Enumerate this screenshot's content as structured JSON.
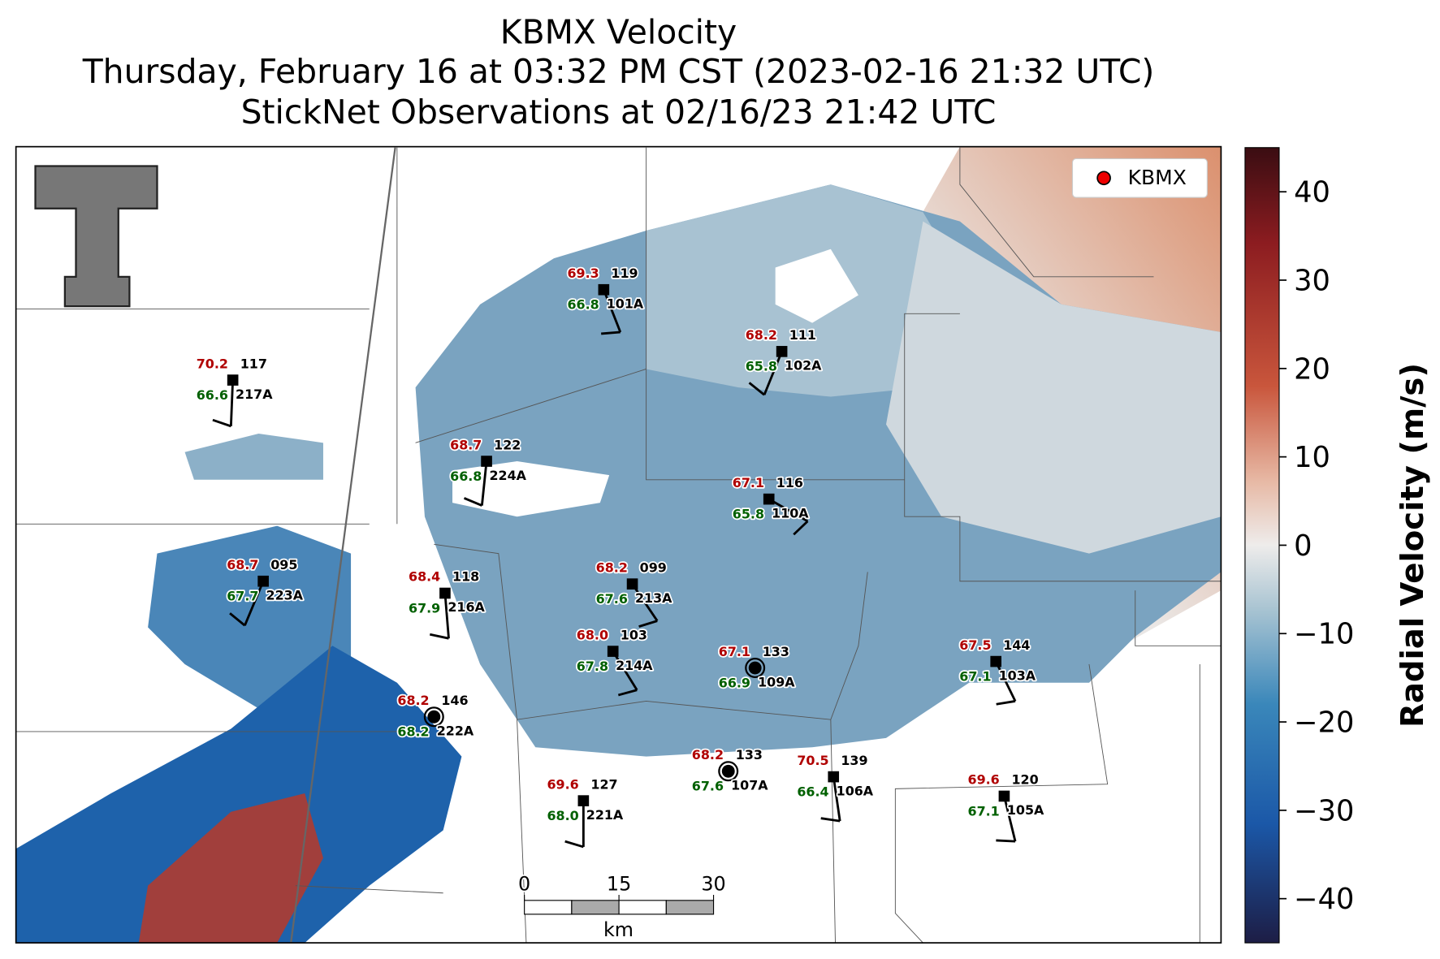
{
  "header": {
    "title": "KBMX Velocity",
    "subtitle": "Thursday, February 16 at 03:32 PM CST (2023-02-16 21:32 UTC)",
    "observations": "StickNet Observations at 02/16/23 21:42 UTC"
  },
  "legend": {
    "label": "KBMX"
  },
  "colorbar": {
    "label": "Radial Velocity (m/s)",
    "lim": [
      -45,
      45
    ],
    "ticks": [
      {
        "value": 40,
        "label": "40"
      },
      {
        "value": 30,
        "label": "30"
      },
      {
        "value": 20,
        "label": "20"
      },
      {
        "value": 10,
        "label": "10"
      },
      {
        "value": 0,
        "label": "0"
      },
      {
        "value": -10,
        "label": "−10"
      },
      {
        "value": -20,
        "label": "−20"
      },
      {
        "value": -30,
        "label": "−30"
      },
      {
        "value": -40,
        "label": "−40"
      }
    ]
  },
  "scale_bar": {
    "unit": "km",
    "lim": [
      0,
      30
    ],
    "ticks": [
      0,
      15,
      30
    ]
  },
  "stations": [
    {
      "id": "101A",
      "temperature": "69.3",
      "direction": "119",
      "dewpoint": "66.8"
    },
    {
      "id": "102A",
      "temperature": "68.2",
      "direction": "111",
      "dewpoint": "65.8"
    },
    {
      "id": "217A",
      "temperature": "70.2",
      "direction": "117",
      "dewpoint": "66.6"
    },
    {
      "id": "224A",
      "temperature": "68.7",
      "direction": "122",
      "dewpoint": "66.8"
    },
    {
      "id": "110A",
      "temperature": "67.1",
      "direction": "116",
      "dewpoint": "65.8"
    },
    {
      "id": "223A",
      "temperature": "68.7",
      "direction": "095",
      "dewpoint": "67.7"
    },
    {
      "id": "216A",
      "temperature": "68.4",
      "direction": "118",
      "dewpoint": "67.9"
    },
    {
      "id": "213A",
      "temperature": "68.2",
      "direction": "099",
      "dewpoint": "67.6"
    },
    {
      "id": "214A",
      "temperature": "68.0",
      "direction": "103",
      "dewpoint": "67.8"
    },
    {
      "id": "109A",
      "temperature": "67.1",
      "direction": "133",
      "dewpoint": "66.9"
    },
    {
      "id": "103A",
      "temperature": "67.5",
      "direction": "144",
      "dewpoint": "67.1"
    },
    {
      "id": "222A",
      "temperature": "68.2",
      "direction": "146",
      "dewpoint": "68.2"
    },
    {
      "id": "107A",
      "temperature": "68.2",
      "direction": "133",
      "dewpoint": "67.6"
    },
    {
      "id": "106A",
      "temperature": "70.5",
      "direction": "139",
      "dewpoint": "66.4"
    },
    {
      "id": "221A",
      "temperature": "69.6",
      "direction": "127",
      "dewpoint": "68.0"
    },
    {
      "id": "105A",
      "temperature": "69.6",
      "direction": "120",
      "dewpoint": "67.1"
    }
  ]
}
